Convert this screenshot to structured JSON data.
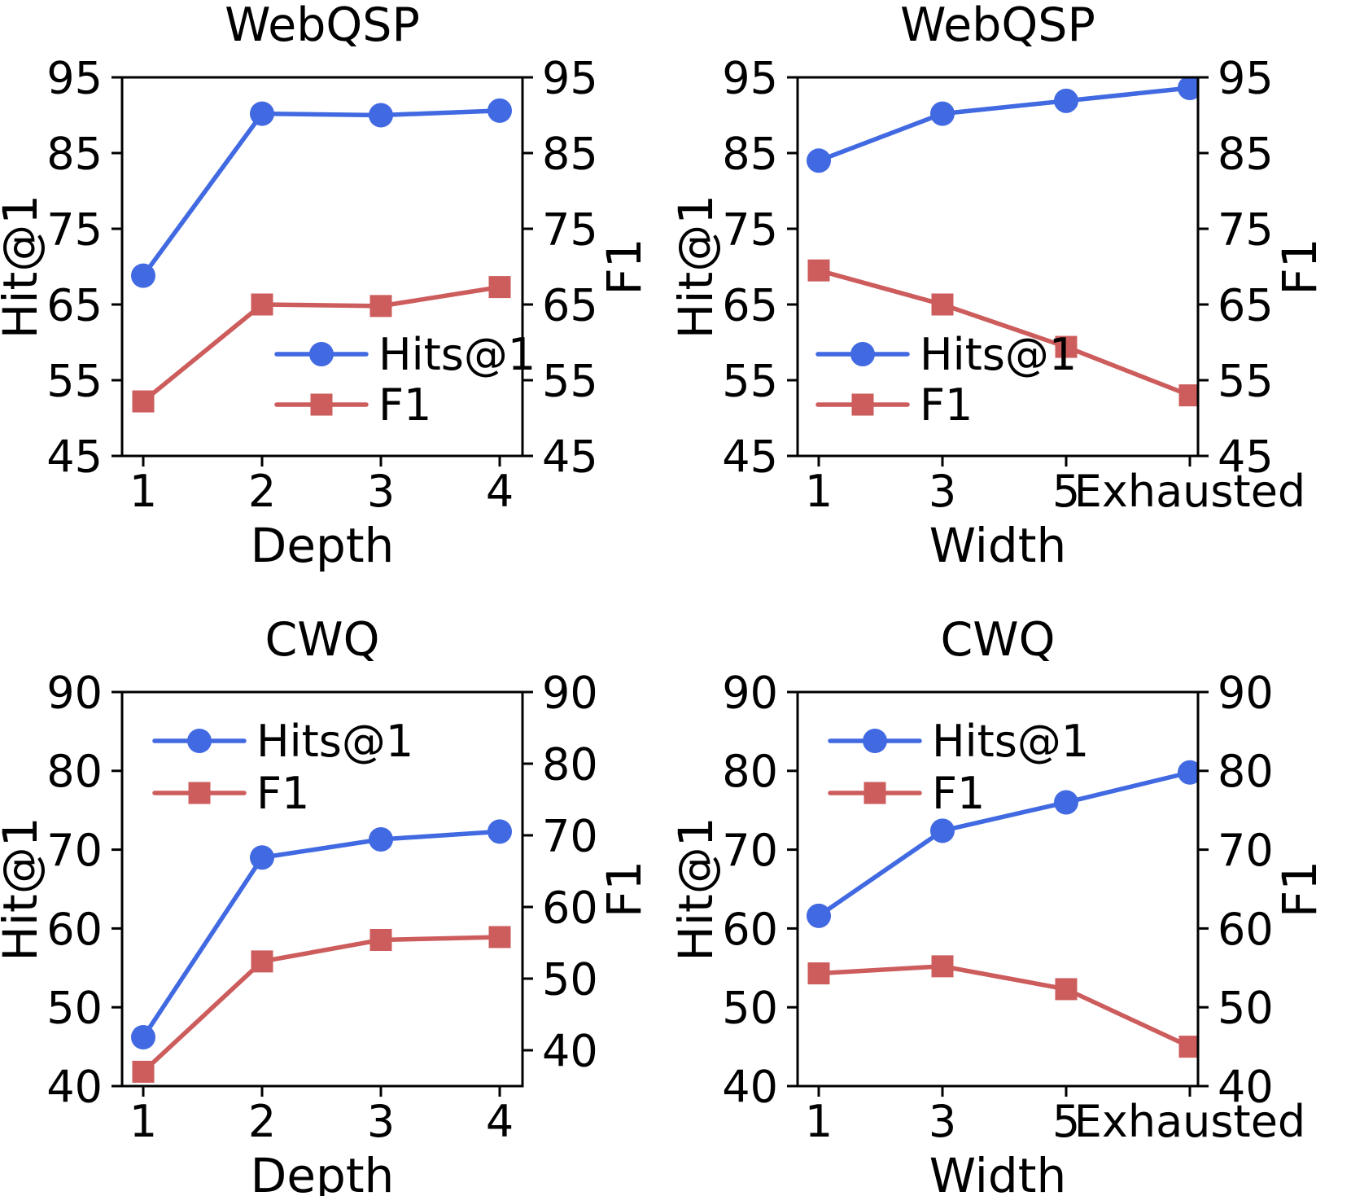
{
  "figure": {
    "background": "#ffffff",
    "text_color": "#000000",
    "hits_color": "#4169E1",
    "f1_color": "#CD5C5C"
  },
  "chart_data": [
    {
      "id": "webqsp-depth",
      "type": "line",
      "title": "WebQSP",
      "xlabel": "Depth",
      "ylabel_left": "Hit@1",
      "ylabel_right": "F1",
      "categories": [
        "1",
        "2",
        "3",
        "4"
      ],
      "x_layout": "padded",
      "left_ylim": [
        45,
        95
      ],
      "right_ylim": [
        45,
        95
      ],
      "left_yticks": [
        45,
        55,
        65,
        75,
        85,
        95
      ],
      "right_yticks": [
        45,
        55,
        65,
        75,
        85,
        95
      ],
      "grid": false,
      "legend_pos": "lower-right",
      "series": [
        {
          "name": "Hits@1",
          "axis": "left",
          "marker": "circle",
          "color": "#4169E1",
          "values": [
            68.8,
            90.2,
            90.0,
            90.6
          ]
        },
        {
          "name": "F1",
          "axis": "right",
          "marker": "square",
          "color": "#CD5C5C",
          "values": [
            52.2,
            65.0,
            64.8,
            67.3
          ]
        }
      ]
    },
    {
      "id": "webqsp-width",
      "type": "line",
      "title": "WebQSP",
      "xlabel": "Width",
      "ylabel_left": "Hit@1",
      "ylabel_right": "F1",
      "categories": [
        "1",
        "3",
        "5",
        "Exhausted"
      ],
      "x_layout": "flush_right",
      "left_ylim": [
        45,
        95
      ],
      "right_ylim": [
        45,
        95
      ],
      "left_yticks": [
        45,
        55,
        65,
        75,
        85,
        95
      ],
      "right_yticks": [
        45,
        55,
        65,
        75,
        85,
        95
      ],
      "grid": false,
      "legend_pos": "lower-left",
      "series": [
        {
          "name": "Hits@1",
          "axis": "left",
          "marker": "circle",
          "color": "#4169E1",
          "values": [
            84.0,
            90.2,
            91.9,
            93.6
          ]
        },
        {
          "name": "F1",
          "axis": "right",
          "marker": "square",
          "color": "#CD5C5C",
          "values": [
            69.5,
            65.0,
            59.4,
            53.0
          ]
        }
      ]
    },
    {
      "id": "cwq-depth",
      "type": "line",
      "title": "CWQ",
      "xlabel": "Depth",
      "ylabel_left": "Hit@1",
      "ylabel_right": "F1",
      "categories": [
        "1",
        "2",
        "3",
        "4"
      ],
      "x_layout": "padded",
      "left_ylim": [
        40,
        90
      ],
      "right_ylim": [
        35,
        90
      ],
      "left_yticks": [
        40,
        50,
        60,
        70,
        80,
        90
      ],
      "right_yticks": [
        40,
        50,
        60,
        70,
        80,
        90
      ],
      "grid": false,
      "legend_pos": "upper-left",
      "series": [
        {
          "name": "Hits@1",
          "axis": "left",
          "marker": "circle",
          "color": "#4169E1",
          "values": [
            46.2,
            69.0,
            71.3,
            72.3
          ]
        },
        {
          "name": "F1",
          "axis": "right",
          "marker": "square",
          "color": "#CD5C5C",
          "values": [
            37.0,
            52.4,
            55.4,
            55.8
          ]
        }
      ]
    },
    {
      "id": "cwq-width",
      "type": "line",
      "title": "CWQ",
      "xlabel": "Width",
      "ylabel_left": "Hit@1",
      "ylabel_right": "F1",
      "categories": [
        "1",
        "3",
        "5",
        "Exhausted"
      ],
      "x_layout": "flush_right",
      "left_ylim": [
        40,
        90
      ],
      "right_ylim": [
        40,
        90
      ],
      "left_yticks": [
        40,
        50,
        60,
        70,
        80,
        90
      ],
      "right_yticks": [
        40,
        50,
        60,
        70,
        80,
        90
      ],
      "grid": false,
      "legend_pos": "upper-left",
      "series": [
        {
          "name": "Hits@1",
          "axis": "left",
          "marker": "circle",
          "color": "#4169E1",
          "values": [
            61.6,
            72.4,
            76.0,
            79.8
          ]
        },
        {
          "name": "F1",
          "axis": "right",
          "marker": "square",
          "color": "#CD5C5C",
          "values": [
            54.3,
            55.2,
            52.3,
            45.0
          ]
        }
      ]
    }
  ]
}
